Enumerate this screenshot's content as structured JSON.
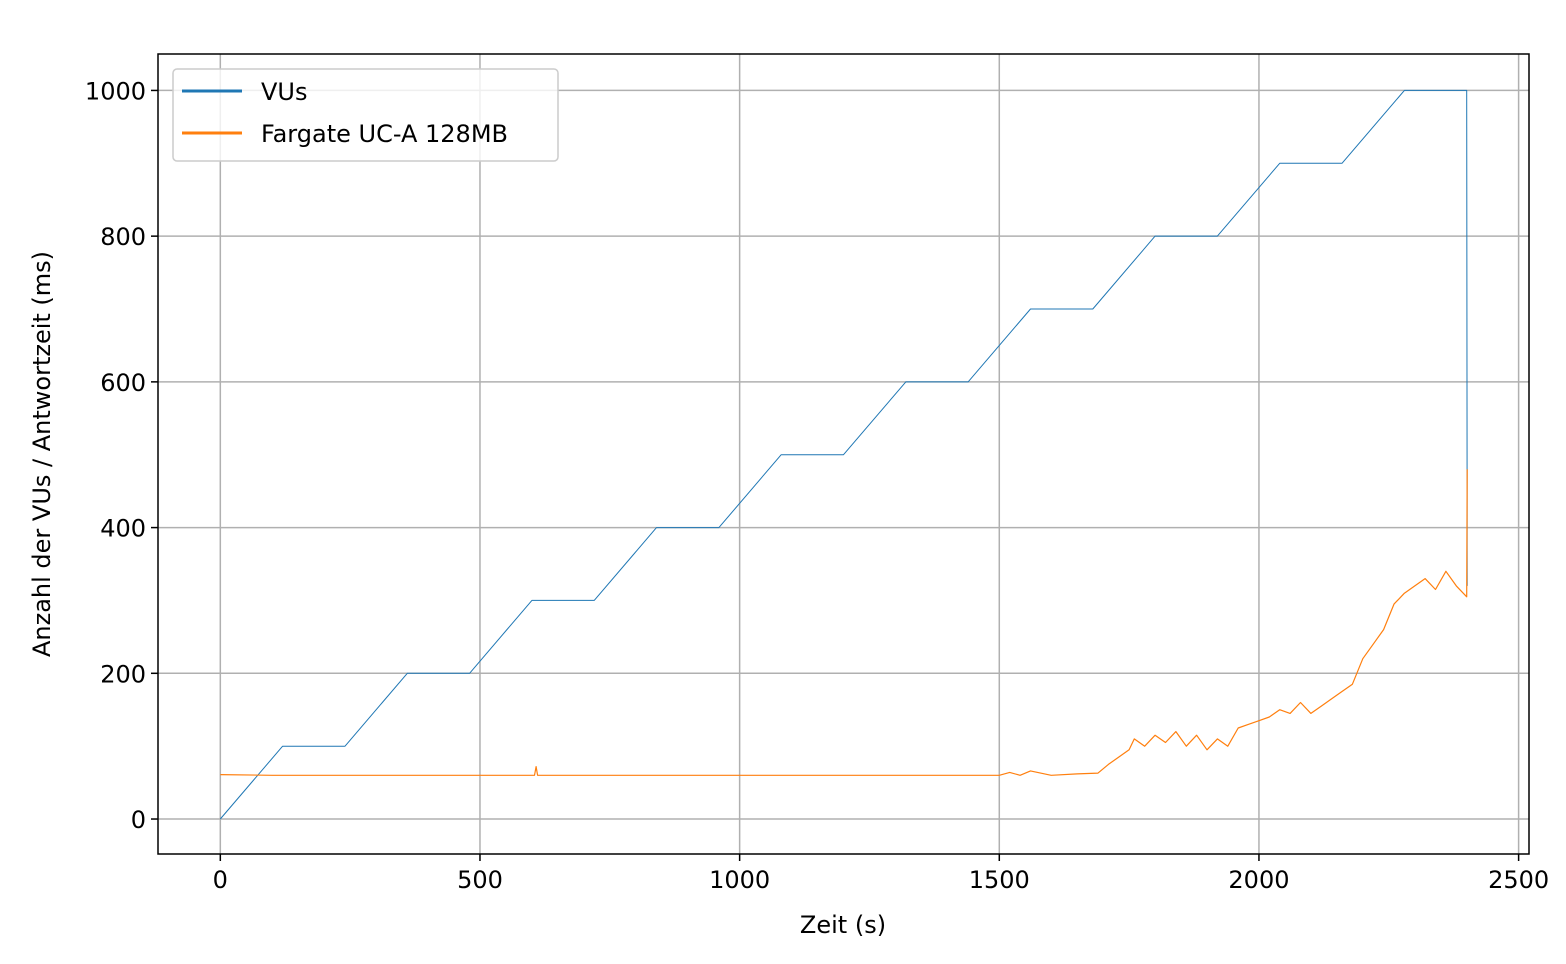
{
  "chart_data": {
    "type": "line",
    "title": "",
    "xlabel": "Zeit (s)",
    "ylabel": "Anzahl der VUs / Antwortzeit (ms)",
    "xlim": [
      -120,
      2520
    ],
    "ylim": [
      -48,
      1050
    ],
    "xticks": [
      0,
      500,
      1000,
      1500,
      2000,
      2500
    ],
    "yticks": [
      0,
      200,
      400,
      600,
      800,
      1000
    ],
    "grid": true,
    "legend_position": "top-left",
    "series": [
      {
        "name": "VUs",
        "color": "#1f77b4",
        "x": [
          0,
          120,
          240,
          360,
          480,
          600,
          720,
          840,
          960,
          1080,
          1200,
          1320,
          1440,
          1560,
          1680,
          1800,
          1920,
          2040,
          2160,
          2280,
          2400,
          2401
        ],
        "y": [
          0,
          100,
          100,
          200,
          200,
          300,
          300,
          400,
          400,
          500,
          500,
          600,
          600,
          700,
          700,
          800,
          800,
          900,
          900,
          1000,
          1000,
          320
        ]
      },
      {
        "name": "Fargate UC-A 128MB",
        "color": "#ff7f0e",
        "x": [
          0,
          100,
          300,
          500,
          605,
          608,
          611,
          700,
          900,
          1100,
          1300,
          1500,
          1520,
          1540,
          1560,
          1600,
          1650,
          1690,
          1710,
          1730,
          1750,
          1760,
          1780,
          1800,
          1820,
          1840,
          1860,
          1880,
          1900,
          1920,
          1940,
          1960,
          1980,
          2000,
          2020,
          2040,
          2060,
          2080,
          2100,
          2120,
          2140,
          2160,
          2180,
          2200,
          2220,
          2240,
          2260,
          2280,
          2300,
          2320,
          2340,
          2360,
          2380,
          2400,
          2401
        ],
        "y": [
          61,
          60,
          60,
          60,
          60,
          72,
          60,
          60,
          60,
          60,
          60,
          60,
          64,
          60,
          66,
          60,
          62,
          63,
          75,
          85,
          95,
          110,
          100,
          115,
          105,
          120,
          100,
          115,
          95,
          110,
          100,
          125,
          130,
          135,
          140,
          150,
          145,
          160,
          145,
          155,
          165,
          175,
          185,
          220,
          240,
          260,
          295,
          310,
          320,
          330,
          315,
          340,
          320,
          305,
          480
        ]
      }
    ]
  }
}
